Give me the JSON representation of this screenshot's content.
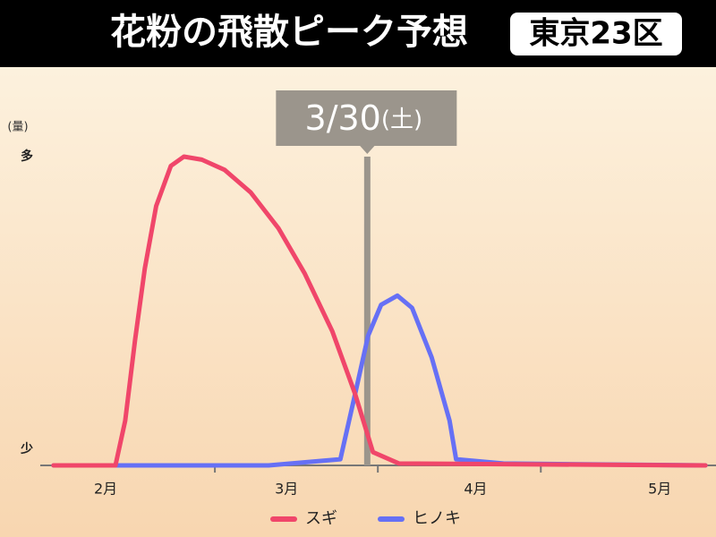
{
  "chart_data": {
    "type": "line",
    "title": "花粉の飛散ピーク予想",
    "region": "東京23区",
    "ylabel": "(量)",
    "xlim": [
      2,
      6.02
    ],
    "ylim": [
      0,
      100
    ],
    "yticks": [
      {
        "value": 0,
        "label": "少"
      },
      {
        "value": 100,
        "label": "多"
      }
    ],
    "xticks": [
      {
        "value": 2.33,
        "label": "2月"
      },
      {
        "value": 3.44,
        "label": "3月"
      },
      {
        "value": 4.6,
        "label": "4月"
      },
      {
        "value": 5.73,
        "label": "5月"
      }
    ],
    "xminor": [
      3,
      4,
      5
    ],
    "marker": {
      "x": 3.935,
      "label": "3/30",
      "day": "(土)",
      "color": "#9b958c"
    },
    "series": [
      {
        "name": "スギ",
        "color": "#f0466a",
        "x": [
          2.01,
          2.39,
          2.45,
          2.51,
          2.57,
          2.64,
          2.73,
          2.81,
          2.92,
          3.06,
          3.22,
          3.39,
          3.55,
          3.72,
          3.86,
          3.97,
          4.13,
          6.01
        ],
        "values": [
          0,
          0,
          14.5,
          40.6,
          63.8,
          84,
          97,
          100,
          99,
          95.7,
          88.4,
          76.8,
          62.3,
          43.5,
          23.2,
          4.3,
          0.6,
          0
        ]
      },
      {
        "name": "ヒノキ",
        "color": "#6670f5",
        "x": [
          2.01,
          3.33,
          3.77,
          3.86,
          3.94,
          4.02,
          4.12,
          4.21,
          4.33,
          4.44,
          4.48,
          4.77,
          6.01
        ],
        "values": [
          0,
          0,
          2,
          23,
          42,
          52,
          55,
          51,
          35,
          14.5,
          2,
          0.6,
          0
        ]
      }
    ]
  }
}
